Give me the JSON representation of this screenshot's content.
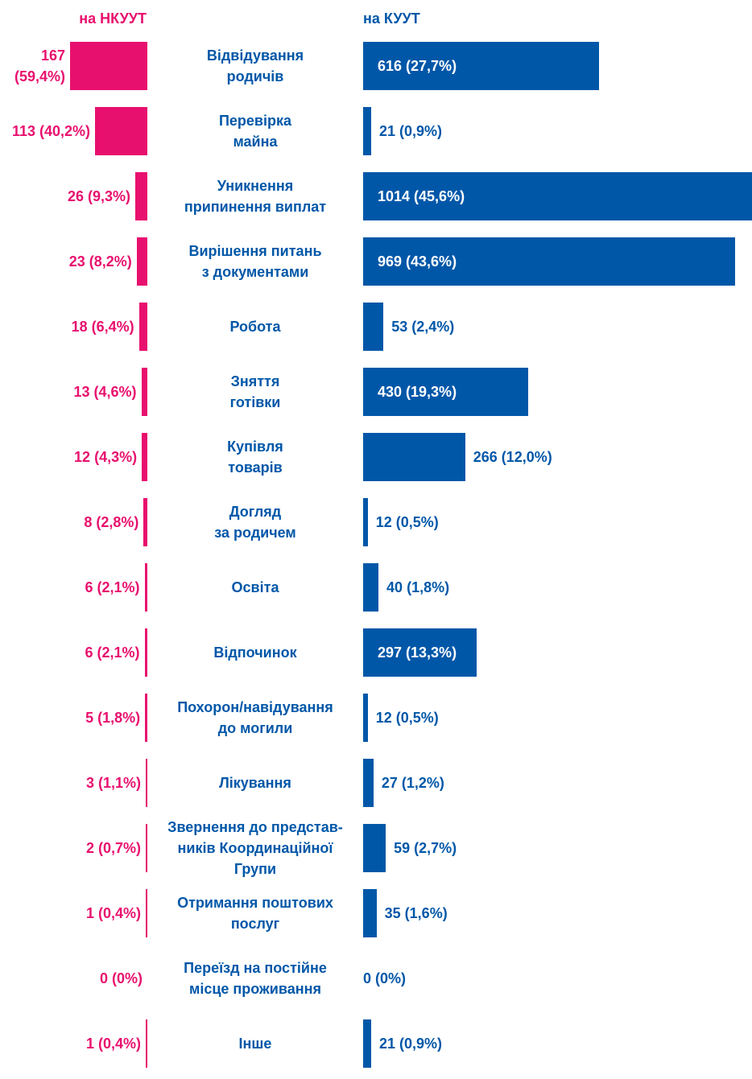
{
  "chart_data": {
    "type": "butterfly",
    "categories": [
      "Відвідування\nродичів",
      "Перевірка\nмайна",
      "Уникнення\nприпинення виплат",
      "Вирішення питань\nз документами",
      "Робота",
      "Зняття\nготівки",
      "Купівля\nтоварів",
      "Догляд\nза родичем",
      "Освіта",
      "Відпочинок",
      "Похорон/навідування\nдо могили",
      "Лікування",
      "Звернення до представ-\nників Координаційної\nГрупи",
      "Отримання поштових\nпослуг",
      "Переїзд на постійне\nмісце проживання",
      "Інше"
    ],
    "series": [
      {
        "name": "на НКУУТ",
        "color": "#e8106e",
        "values": [
          167,
          113,
          26,
          23,
          18,
          13,
          12,
          8,
          6,
          6,
          5,
          3,
          2,
          1,
          0,
          1
        ],
        "value_labels": [
          "167 (59,4%)",
          "113 (40,2%)",
          "26 (9,3%)",
          "23 (8,2%)",
          "18 (6,4%)",
          "13 (4,6%)",
          "12 (4,3%)",
          "8 (2,8%)",
          "6 (2,1%)",
          "6 (2,1%)",
          "5 (1,8%)",
          "3 (1,1%)",
          "2 (0,7%)",
          "1 (0,4%)",
          "0 (0%)",
          "1 (0,4%)"
        ]
      },
      {
        "name": "на КУУТ",
        "color": "#0057a8",
        "values": [
          616,
          21,
          1014,
          969,
          53,
          430,
          266,
          12,
          40,
          297,
          12,
          27,
          59,
          35,
          0,
          21
        ],
        "value_labels": [
          "616 (27,7%)",
          "21 (0,9%)",
          "1014 (45,6%)",
          "969 (43,6%)",
          "53 (2,4%)",
          "430 (19,3%)",
          "266 (12,0%)",
          "12 (0,5%)",
          "40 (1,8%)",
          "297 (13,3%)",
          "12 (0,5%)",
          "27 (1,2%)",
          "59 (2,7%)",
          "35 (1,6%)",
          "0 (0%)",
          "21 (0,9%)"
        ]
      }
    ]
  }
}
